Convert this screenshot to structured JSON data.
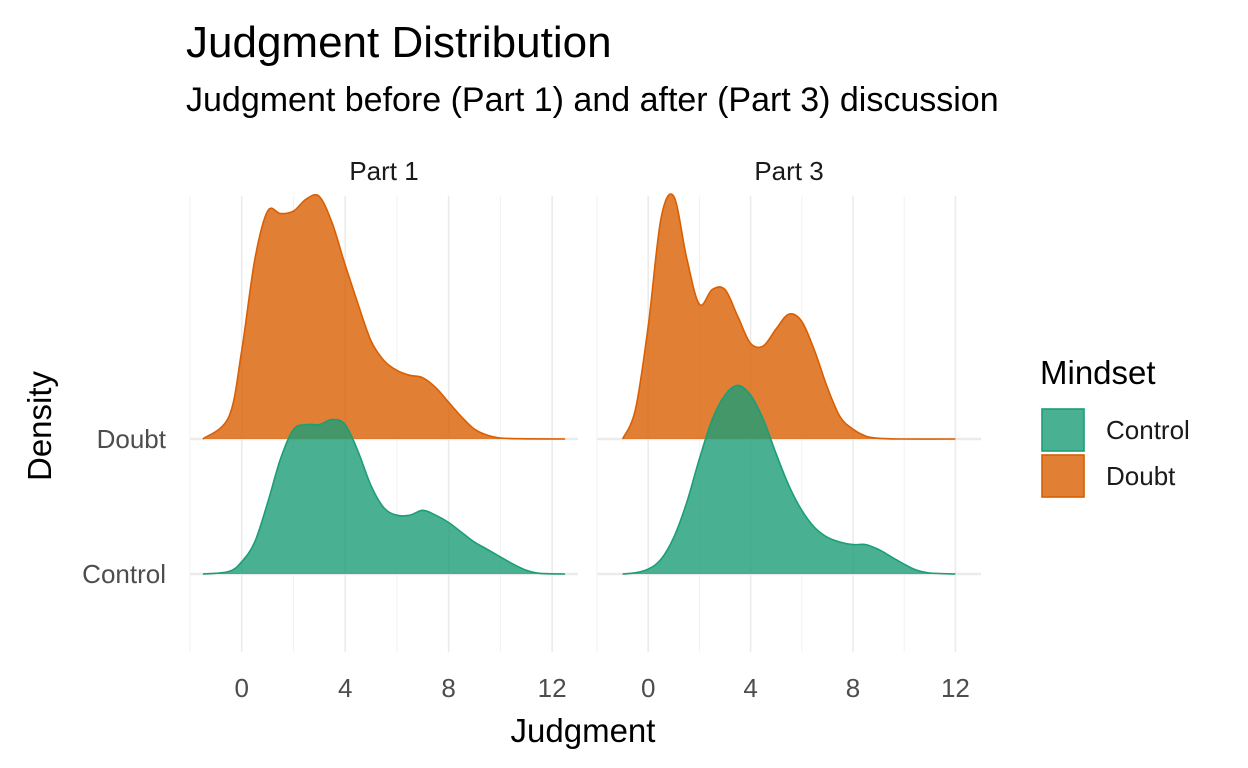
{
  "chart_data": {
    "type": "ridgeline-density",
    "title": "Judgment Distribution",
    "subtitle": "Judgment before (Part 1) and after (Part 3) discussion",
    "xlabel": "Judgment",
    "ylabel": "Density",
    "xlim": [
      -2,
      13
    ],
    "xticks": [
      0,
      4,
      8,
      12
    ],
    "rows": [
      "Control",
      "Doubt"
    ],
    "legend": {
      "title": "Mindset",
      "placement": "right",
      "entries": [
        {
          "label": "Control",
          "color": "#1b9e77"
        },
        {
          "label": "Doubt",
          "color": "#d95f02"
        }
      ]
    },
    "panels": [
      {
        "label": "Part 1",
        "series": [
          {
            "name": "Control",
            "x": [
              -1.5,
              -0.5,
              0,
              0.5,
              1,
              1.5,
              2,
              2.5,
              3,
              3.5,
              4,
              4.5,
              5,
              5.5,
              6,
              6.5,
              7,
              7.5,
              8,
              8.5,
              9,
              9.5,
              10,
              10.5,
              11,
              11.5,
              12.5
            ],
            "y": [
              0,
              0.01,
              0.05,
              0.13,
              0.29,
              0.47,
              0.59,
              0.61,
              0.61,
              0.63,
              0.61,
              0.5,
              0.36,
              0.27,
              0.24,
              0.24,
              0.26,
              0.24,
              0.21,
              0.17,
              0.13,
              0.1,
              0.07,
              0.04,
              0.015,
              0.003,
              0
            ]
          },
          {
            "name": "Doubt",
            "x": [
              -1.5,
              -0.5,
              0,
              0.5,
              1,
              1.5,
              2,
              2.5,
              3,
              3.5,
              4,
              4.5,
              5,
              5.5,
              6,
              6.5,
              7,
              7.5,
              8,
              8.5,
              9,
              9.5,
              10,
              11,
              12.5
            ],
            "y": [
              0,
              0.09,
              0.36,
              0.73,
              0.93,
              0.92,
              0.93,
              0.98,
              0.99,
              0.88,
              0.71,
              0.55,
              0.4,
              0.32,
              0.28,
              0.26,
              0.25,
              0.21,
              0.15,
              0.09,
              0.04,
              0.015,
              0.004,
              0.001,
              0
            ]
          }
        ]
      },
      {
        "label": "Part 3",
        "series": [
          {
            "name": "Control",
            "x": [
              -1,
              -0.5,
              0,
              0.5,
              1,
              1.5,
              2,
              2.5,
              3,
              3.5,
              4,
              4.5,
              5,
              5.5,
              6,
              6.5,
              7,
              7.5,
              8,
              8.5,
              9,
              9.5,
              10,
              10.5,
              11,
              12
            ],
            "y": [
              0,
              0.005,
              0.02,
              0.06,
              0.15,
              0.29,
              0.47,
              0.63,
              0.73,
              0.77,
              0.73,
              0.63,
              0.49,
              0.36,
              0.26,
              0.19,
              0.15,
              0.13,
              0.12,
              0.12,
              0.1,
              0.07,
              0.04,
              0.015,
              0.004,
              0
            ]
          },
          {
            "name": "Doubt",
            "x": [
              -1,
              -0.5,
              0,
              0.5,
              1,
              1.5,
              2,
              2.5,
              3,
              3.5,
              4,
              4.5,
              5,
              5.5,
              6,
              6.5,
              7,
              7.5,
              8,
              8.5,
              9,
              10,
              12
            ],
            "y": [
              0,
              0.12,
              0.46,
              0.9,
              0.99,
              0.74,
              0.55,
              0.61,
              0.61,
              0.5,
              0.39,
              0.38,
              0.45,
              0.51,
              0.48,
              0.36,
              0.21,
              0.09,
              0.04,
              0.012,
              0.003,
              0,
              0
            ]
          }
        ]
      }
    ]
  }
}
